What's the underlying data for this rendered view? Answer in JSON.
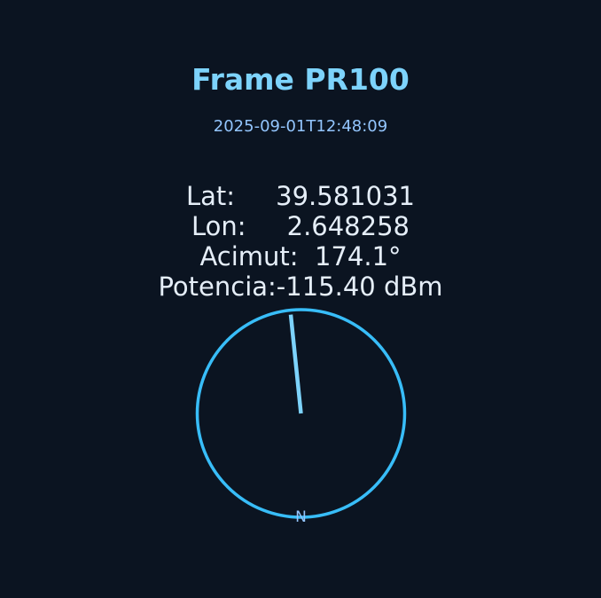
{
  "frame": {
    "title": "Frame PR100",
    "timestamp": "2025-09-01T12:48:09"
  },
  "readout": {
    "lat": "Lat:     39.581031",
    "lon": "Lon:     2.648258",
    "azimuth": "Acimut:  174.1°",
    "power": "Potencia:-115.40 dBm"
  },
  "compass": {
    "azimuth_deg": 174.1,
    "north_label": "N",
    "ring_color": "#38bdf8",
    "needle_color": "#7dd3fc",
    "label_color": "#93c5fd"
  }
}
